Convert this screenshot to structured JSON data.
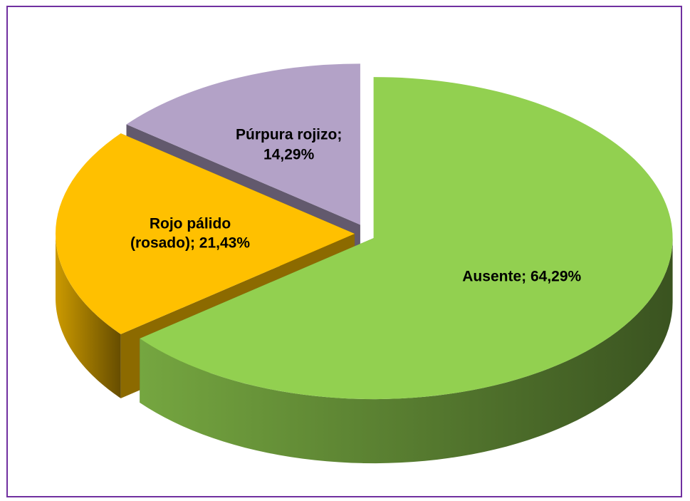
{
  "chart_data": {
    "type": "pie",
    "categories": [
      "Ausente",
      "Rojo pálido (rosado)",
      "Púrpura rojizo"
    ],
    "values": [
      64.29,
      21.43,
      14.29
    ],
    "value_labels": [
      "64,29%",
      "21,43%",
      "14,29%"
    ],
    "label_separator": ";",
    "colors": [
      "#92d050",
      "#ffc000",
      "#b3a2c7"
    ]
  }
}
